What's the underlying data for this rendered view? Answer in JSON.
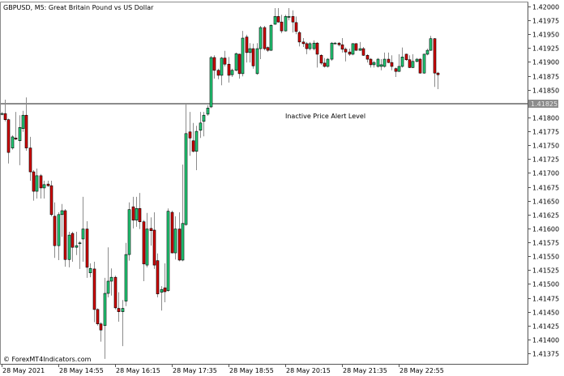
{
  "chart_data": {
    "type": "candlestick",
    "title": "GBPUSD, M5:  Great Britain Pound vs US Dollar",
    "ylim": [
      1.41375,
      1.42
    ],
    "y_ticks": [
      "1.42000",
      "1.41975",
      "1.41950",
      "1.41925",
      "1.41900",
      "1.41875",
      "1.41850",
      "1.41825",
      "1.41800",
      "1.41775",
      "1.41750",
      "1.41725",
      "1.41700",
      "1.41675",
      "1.41650",
      "1.41625",
      "1.41600",
      "1.41575",
      "1.41550",
      "1.41525",
      "1.41500",
      "1.41475",
      "1.41450",
      "1.41425",
      "1.41400",
      "1.41375"
    ],
    "x_ticks": [
      "28 May 2021",
      "28 May 14:55",
      "28 May 16:15",
      "28 May 17:35",
      "28 May 18:55",
      "28 May 20:15",
      "28 May 21:35",
      "28 May 22:55"
    ],
    "grid": false,
    "colors": {
      "bull": "#22cc77",
      "bear": "#d40000",
      "wick": "#8c8c8c",
      "outline": "#000000",
      "alert_line": "#8c8c8c"
    },
    "alert": {
      "price": 1.41825,
      "price_label": "1.41825",
      "label": "Inactive Price Alert Level"
    },
    "candles_ohlc": [
      [
        1.41807,
        1.4181,
        1.41804,
        1.41807
      ],
      [
        1.41807,
        1.41832,
        1.41793,
        1.41796
      ],
      [
        1.41796,
        1.41798,
        1.41717,
        1.41737
      ],
      [
        1.41745,
        1.41768,
        1.41742,
        1.41765
      ],
      [
        1.41763,
        1.4181,
        1.41759,
        1.41761
      ],
      [
        1.41758,
        1.41804,
        1.41714,
        1.41782
      ],
      [
        1.4178,
        1.41812,
        1.41774,
        1.41804
      ],
      [
        1.41804,
        1.41836,
        1.4174,
        1.41745
      ],
      [
        1.41745,
        1.41765,
        1.41686,
        1.41702
      ],
      [
        1.41702,
        1.41705,
        1.4165,
        1.41667
      ],
      [
        1.41667,
        1.41708,
        1.41654,
        1.41695
      ],
      [
        1.41695,
        1.41698,
        1.41654,
        1.41673
      ],
      [
        1.41673,
        1.41686,
        1.41654,
        1.41679
      ],
      [
        1.4168,
        1.41686,
        1.41675,
        1.41677
      ],
      [
        1.41677,
        1.41686,
        1.41622,
        1.41625
      ],
      [
        1.41622,
        1.41647,
        1.41547,
        1.41569
      ],
      [
        1.41569,
        1.41629,
        1.41543,
        1.41625
      ],
      [
        1.41625,
        1.41644,
        1.41585,
        1.41632
      ],
      [
        1.41632,
        1.41635,
        1.41531,
        1.41544
      ],
      [
        1.41544,
        1.41594,
        1.4153,
        1.41588
      ],
      [
        1.41591,
        1.41594,
        1.4154,
        1.41566
      ],
      [
        1.41566,
        1.41594,
        1.41552,
        1.41569
      ],
      [
        1.41574,
        1.41577,
        1.41527,
        1.41574
      ],
      [
        1.41581,
        1.41657,
        1.4154,
        1.41599
      ],
      [
        1.41599,
        1.41613,
        1.41511,
        1.4153
      ],
      [
        1.4152,
        1.41537,
        1.41512,
        1.41528
      ],
      [
        1.41527,
        1.4154,
        1.41431,
        1.41454
      ],
      [
        1.41454,
        1.41456,
        1.41425,
        1.41428
      ],
      [
        1.41428,
        1.41431,
        1.41396,
        1.41417
      ],
      [
        1.41425,
        1.41511,
        1.41365,
        1.41483
      ],
      [
        1.41483,
        1.41566,
        1.41476,
        1.41505
      ],
      [
        1.41505,
        1.41528,
        1.41479,
        1.41512
      ],
      [
        1.41512,
        1.41515,
        1.41454,
        1.41457
      ],
      [
        1.41456,
        1.41485,
        1.41432,
        1.4145
      ],
      [
        1.4145,
        1.41471,
        1.41388,
        1.41456
      ],
      [
        1.41469,
        1.41574,
        1.4146,
        1.41553
      ],
      [
        1.41553,
        1.41647,
        1.41542,
        1.41634
      ],
      [
        1.41639,
        1.41657,
        1.416,
        1.41615
      ],
      [
        1.41615,
        1.41657,
        1.41603,
        1.41636
      ],
      [
        1.41636,
        1.41664,
        1.41599,
        1.41612
      ],
      [
        1.41612,
        1.41615,
        1.41505,
        1.41536
      ],
      [
        1.41534,
        1.41628,
        1.4153,
        1.41599
      ],
      [
        1.416,
        1.4162,
        1.41569,
        1.41596
      ],
      [
        1.41597,
        1.41629,
        1.41527,
        1.41534
      ],
      [
        1.41542,
        1.41555,
        1.41476,
        1.41482
      ],
      [
        1.41485,
        1.41496,
        1.41452,
        1.4149
      ],
      [
        1.41493,
        1.41537,
        1.41467,
        1.41486
      ],
      [
        1.41488,
        1.41636,
        1.41486,
        1.41631
      ],
      [
        1.41629,
        1.41632,
        1.41555,
        1.41556
      ],
      [
        1.41556,
        1.41622,
        1.41544,
        1.41599
      ],
      [
        1.41599,
        1.41629,
        1.41541,
        1.41543
      ],
      [
        1.41543,
        1.41715,
        1.41541,
        1.41609
      ],
      [
        1.41607,
        1.41825,
        1.41605,
        1.41771
      ],
      [
        1.41774,
        1.4181,
        1.41731,
        1.41763
      ],
      [
        1.41758,
        1.4179,
        1.41737,
        1.41739
      ],
      [
        1.41739,
        1.41785,
        1.41705,
        1.41775
      ],
      [
        1.41777,
        1.4181,
        1.41763,
        1.4179
      ],
      [
        1.41793,
        1.4181,
        1.41766,
        1.41804
      ],
      [
        1.41806,
        1.41822,
        1.41803,
        1.41817
      ],
      [
        1.41819,
        1.41911,
        1.41817,
        1.41908
      ],
      [
        1.41908,
        1.41912,
        1.4187,
        1.41885
      ],
      [
        1.41885,
        1.41888,
        1.41869,
        1.41876
      ],
      [
        1.41876,
        1.41909,
        1.41858,
        1.41907
      ],
      [
        1.41907,
        1.4192,
        1.41892,
        1.41896
      ],
      [
        1.41896,
        1.41909,
        1.41863,
        1.41876
      ],
      [
        1.41877,
        1.41888,
        1.41873,
        1.41885
      ],
      [
        1.41885,
        1.41917,
        1.41883,
        1.41915
      ],
      [
        1.41914,
        1.41915,
        1.4187,
        1.41879
      ],
      [
        1.41879,
        1.41956,
        1.41874,
        1.41943
      ],
      [
        1.41945,
        1.41949,
        1.41899,
        1.41917
      ],
      [
        1.41917,
        1.41934,
        1.41899,
        1.41924
      ],
      [
        1.41924,
        1.41933,
        1.41888,
        1.41893
      ],
      [
        1.41879,
        1.41934,
        1.41877,
        1.41924
      ],
      [
        1.41924,
        1.41965,
        1.41905,
        1.41962
      ],
      [
        1.41962,
        1.41965,
        1.41921,
        1.41924
      ],
      [
        1.41926,
        1.41928,
        1.41918,
        1.41921
      ],
      [
        1.41921,
        1.41968,
        1.4192,
        1.41966
      ],
      [
        1.41968,
        1.41997,
        1.41967,
        1.41982
      ],
      [
        1.41982,
        1.41997,
        1.41971,
        1.41972
      ],
      [
        1.41972,
        1.41985,
        1.41952,
        1.41956
      ],
      [
        1.41956,
        1.41985,
        1.41955,
        1.41982
      ],
      [
        1.41982,
        1.41997,
        1.41975,
        1.41982
      ],
      [
        1.41982,
        1.41993,
        1.41953,
        1.41972
      ],
      [
        1.41971,
        1.41982,
        1.4195,
        1.41955
      ],
      [
        1.41953,
        1.41956,
        1.41928,
        1.41936
      ],
      [
        1.41936,
        1.41943,
        1.41927,
        1.41933
      ],
      [
        1.41933,
        1.41936,
        1.41914,
        1.41924
      ],
      [
        1.41924,
        1.41936,
        1.41921,
        1.41933
      ],
      [
        1.41924,
        1.41939,
        1.41921,
        1.41934
      ],
      [
        1.41934,
        1.41936,
        1.4189,
        1.41914
      ],
      [
        1.41912,
        1.41914,
        1.41895,
        1.41898
      ],
      [
        1.41898,
        1.41907,
        1.4189,
        1.41892
      ],
      [
        1.41892,
        1.41907,
        1.4189,
        1.41905
      ],
      [
        1.41905,
        1.41936,
        1.41902,
        1.41934
      ],
      [
        1.41934,
        1.41936,
        1.41933,
        1.41934
      ],
      [
        1.41934,
        1.41936,
        1.41928,
        1.41931
      ],
      [
        1.41931,
        1.41943,
        1.41917,
        1.41923
      ],
      [
        1.41923,
        1.41926,
        1.41901,
        1.41918
      ],
      [
        1.41918,
        1.41924,
        1.41911,
        1.41914
      ],
      [
        1.41914,
        1.41934,
        1.41912,
        1.41933
      ],
      [
        1.41933,
        1.41934,
        1.4192,
        1.41921
      ],
      [
        1.41921,
        1.41936,
        1.4192,
        1.41924
      ],
      [
        1.41924,
        1.41927,
        1.41911,
        1.41912
      ],
      [
        1.41912,
        1.41914,
        1.41899,
        1.41905
      ],
      [
        1.41905,
        1.41907,
        1.4189,
        1.41895
      ],
      [
        1.41895,
        1.41902,
        1.4189,
        1.41899
      ],
      [
        1.41892,
        1.41907,
        1.4189,
        1.41905
      ],
      [
        1.41892,
        1.41905,
        1.41885,
        1.41895
      ],
      [
        1.41892,
        1.41917,
        1.4189,
        1.41905
      ],
      [
        1.41905,
        1.41917,
        1.41898,
        1.41899
      ],
      [
        1.41899,
        1.41912,
        1.41885,
        1.41892
      ],
      [
        1.41888,
        1.4189,
        1.41873,
        1.41883
      ],
      [
        1.41883,
        1.41914,
        1.41882,
        1.41892
      ],
      [
        1.41892,
        1.41926,
        1.4189,
        1.41909
      ],
      [
        1.41914,
        1.41915,
        1.41902,
        1.41904
      ],
      [
        1.41904,
        1.41912,
        1.41889,
        1.4189
      ],
      [
        1.4189,
        1.41914,
        1.41889,
        1.41901
      ],
      [
        1.41901,
        1.41907,
        1.41899,
        1.41905
      ],
      [
        1.41905,
        1.41907,
        1.41879,
        1.4188
      ],
      [
        1.4188,
        1.41915,
        1.41879,
        1.41914
      ],
      [
        1.41914,
        1.41924,
        1.41912,
        1.41921
      ],
      [
        1.41921,
        1.41947,
        1.4192,
        1.41942
      ],
      [
        1.41942,
        1.41943,
        1.41855,
        1.4188
      ],
      [
        1.4188,
        1.41882,
        1.41851,
        1.41877
      ]
    ]
  },
  "watermark": "© ForexMT4Indicators.com"
}
